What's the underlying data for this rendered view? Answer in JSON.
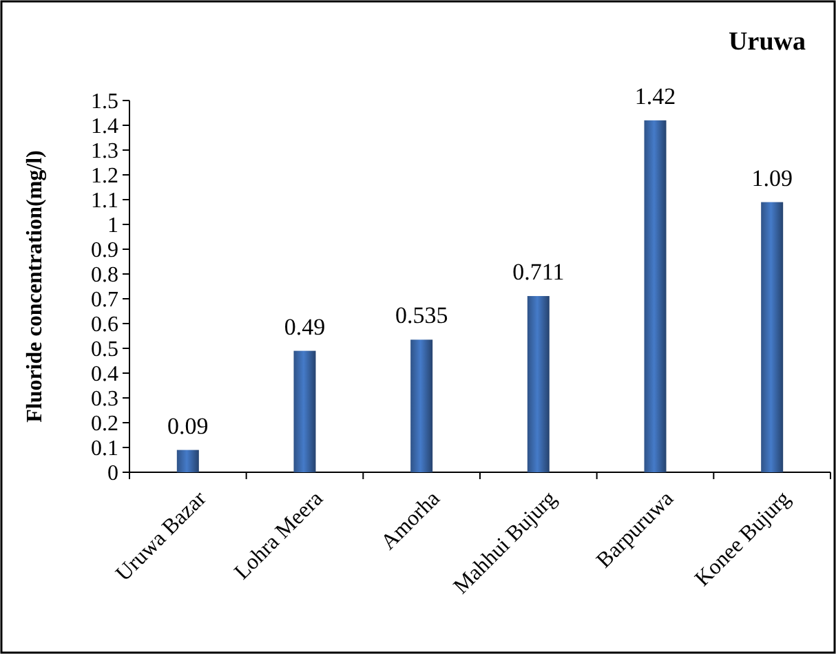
{
  "chart_data": {
    "type": "bar",
    "title": "Uruwa",
    "ylabel": "Fluoride concentration(mg/l)",
    "categories": [
      "Uruwa Bazar",
      "Lohra Meera",
      "Amorha",
      "Mahhui Bujurg",
      "Barpuruwa",
      "Konee Bujurg"
    ],
    "values": [
      0.09,
      0.49,
      0.535,
      0.711,
      1.42,
      1.09
    ],
    "color": "#3a67a8",
    "ylim": [
      0,
      1.5
    ],
    "yticks": [
      0,
      0.1,
      0.2,
      0.3,
      0.4,
      0.5,
      0.6,
      0.7,
      0.8,
      0.9,
      1,
      1.1,
      1.2,
      1.3,
      1.4,
      1.5
    ],
    "data_labels": true
  }
}
